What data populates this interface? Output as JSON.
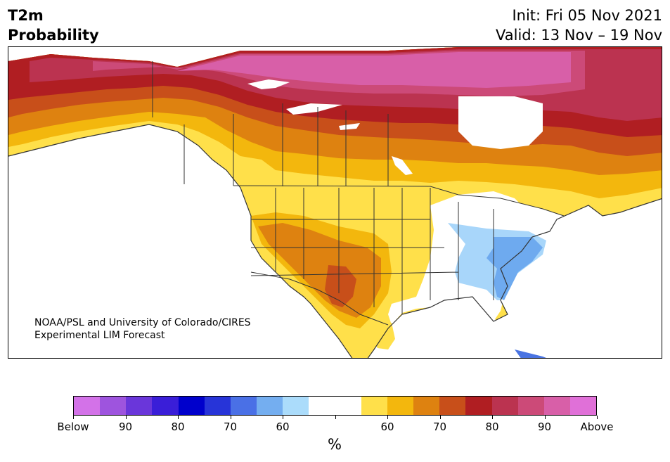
{
  "header": {
    "title_line1": "T2m",
    "title_line2": "Probability",
    "init": "Init: Fri 05 Nov 2021",
    "valid": "Valid: 13 Nov – 19 Nov"
  },
  "map": {
    "credit_line1": "NOAA/PSL and University of Colorado/CIRES",
    "credit_line2": "Experimental LIM Forecast",
    "colors": {
      "above_95": "#e070d8",
      "above_90": "#d85fa8",
      "above_85": "#cc4a78",
      "above_80": "#bb3350",
      "above_75": "#b01e22",
      "above_70": "#c84f1a",
      "above_65": "#de8210",
      "above_60": "#f3b70d",
      "above_55": "#ffe04a",
      "neutral": "#ffffff",
      "below_55": "#a8d6fa",
      "below_60": "#6eaaef",
      "below_65": "#4a74e2",
      "below_70": "#2a3ed8",
      "water": "#ffffff",
      "borders": "#333333"
    }
  },
  "colorbar": {
    "colors": [
      "#d372e8",
      "#9e54de",
      "#6a36da",
      "#3a1ed8",
      "#0000cc",
      "#2734d8",
      "#4a70e6",
      "#74aef0",
      "#abdcfb",
      "#ffffff",
      "#ffffff",
      "#ffe04a",
      "#f3b70d",
      "#de8210",
      "#c84f1a",
      "#b01e22",
      "#bb3350",
      "#cc4a78",
      "#d85fa8",
      "#e070d8"
    ],
    "tick_labels": [
      "Below",
      "90",
      "80",
      "70",
      "60",
      "",
      "60",
      "70",
      "80",
      "90",
      "Above"
    ],
    "unit": "%"
  }
}
